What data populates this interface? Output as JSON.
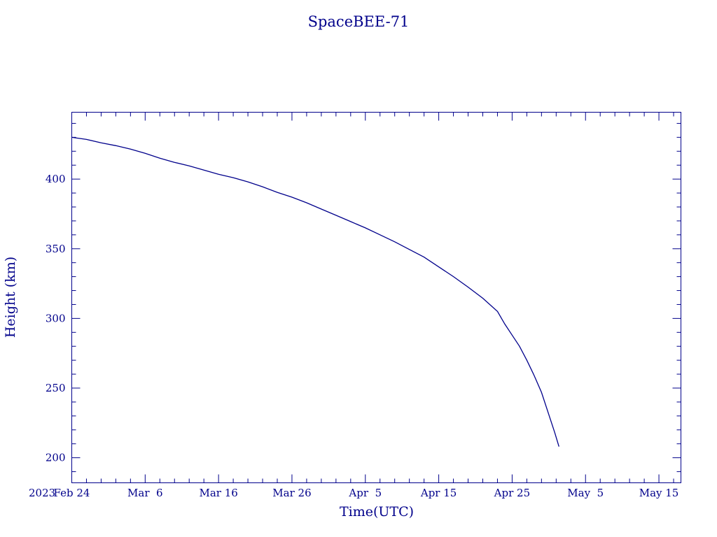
{
  "chart_data": {
    "type": "line",
    "title": "SpaceBEE-71",
    "xlabel": "Time(UTC)",
    "ylabel": "Height (km)",
    "x_start_label": "2023",
    "x_ticks": [
      "2023-02-24",
      "2023-03-06",
      "2023-03-16",
      "2023-03-26",
      "2023-04-05",
      "2023-04-15",
      "2023-04-25",
      "2023-05-05",
      "2023-05-15"
    ],
    "x_tick_labels": [
      "Feb 24",
      "Mar  6",
      "Mar 16",
      "Mar 26",
      "Apr  5",
      "Apr 15",
      "Apr 25",
      "May  5",
      "May 15"
    ],
    "xlim": [
      "2023-02-24",
      "2023-05-18"
    ],
    "y_ticks": [
      200,
      250,
      300,
      350,
      400
    ],
    "ylim": [
      182,
      448
    ],
    "grid": false,
    "series": [
      {
        "x": [
          "2023-02-24",
          "2023-02-26",
          "2023-02-28",
          "2023-03-02",
          "2023-03-04",
          "2023-03-06",
          "2023-03-08",
          "2023-03-10",
          "2023-03-12",
          "2023-03-14",
          "2023-03-16",
          "2023-03-18",
          "2023-03-20",
          "2023-03-22",
          "2023-03-24",
          "2023-03-26",
          "2023-03-28",
          "2023-03-30",
          "2023-04-01",
          "2023-04-03",
          "2023-04-05",
          "2023-04-07",
          "2023-04-09",
          "2023-04-11",
          "2023-04-13",
          "2023-04-15",
          "2023-04-17",
          "2023-04-19",
          "2023-04-21",
          "2023-04-23",
          "2023-04-24",
          "2023-04-25",
          "2023-04-26",
          "2023-04-27",
          "2023-04-28",
          "2023-04-29",
          "2023-04-30",
          "2023-05-01",
          "2023-05-01"
        ],
        "y": [
          430,
          428.5,
          426,
          424,
          421.5,
          418.5,
          415,
          412,
          409.5,
          406.5,
          403.5,
          401,
          398,
          394.5,
          390.5,
          387,
          383,
          378.5,
          374,
          369.5,
          365,
          360,
          355,
          349.5,
          344,
          337,
          330,
          322.5,
          314.5,
          305,
          296,
          288,
          280,
          270,
          259,
          247,
          231,
          218,
          208
        ]
      }
    ]
  }
}
